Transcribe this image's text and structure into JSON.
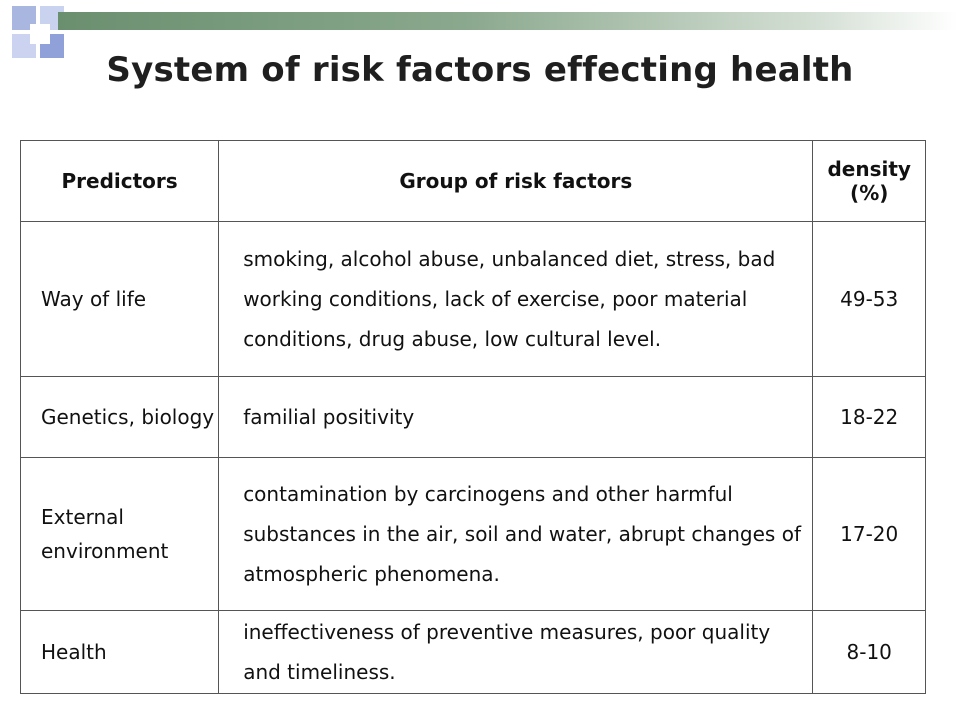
{
  "slide": {
    "title": "System of risk factors effecting health"
  },
  "table": {
    "headers": {
      "predictors": "Predictors",
      "group": "Group of risk factors",
      "density": "density (%)"
    },
    "rows": [
      {
        "predictor": "Way of life",
        "group": "smoking, alcohol abuse, unbalanced diet, stress, bad working conditions, lack of exercise, poor material conditions, drug abuse, low cultural level.",
        "density": "49-53"
      },
      {
        "predictor": "Genetics, biology",
        "group": "familial positivity",
        "density": "18-22"
      },
      {
        "predictor": "External environment",
        "group": "contamination by carcinogens and other harmful substances in the air, soil and water, abrupt changes of atmospheric phenomena.",
        "density": "17-20"
      },
      {
        "predictor": "Health",
        "group": "ineffectiveness of preventive measures, poor quality and timeliness.",
        "density": "8-10"
      }
    ]
  },
  "colors": {
    "title": "#1f1f1f",
    "accent_bar": "#6a8f6f",
    "deco_blue": "#8fa1d8"
  }
}
